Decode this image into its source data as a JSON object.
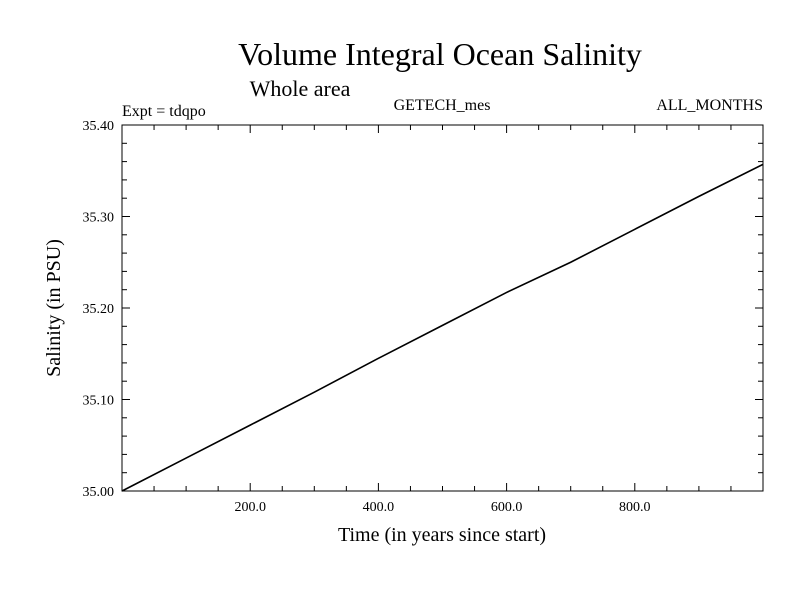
{
  "chart_data": {
    "type": "line",
    "title": "Volume Integral Ocean Salinity",
    "subtitle": "Whole area",
    "annotations": {
      "left": "Expt = tdqpo",
      "center": "GETECH_mes",
      "right": "ALL_MONTHS"
    },
    "xlabel": "Time (in years since start)",
    "ylabel": "Salinity (in PSU)",
    "xlim": [
      0,
      1000
    ],
    "ylim": [
      35.0,
      35.4
    ],
    "x_ticks": [
      {
        "value": 200,
        "label": "200.0"
      },
      {
        "value": 400,
        "label": "400.0"
      },
      {
        "value": 600,
        "label": "600.0"
      },
      {
        "value": 800,
        "label": "800.0"
      }
    ],
    "y_ticks": [
      {
        "value": 35.0,
        "label": "35.00"
      },
      {
        "value": 35.1,
        "label": "35.10"
      },
      {
        "value": 35.2,
        "label": "35.20"
      },
      {
        "value": 35.3,
        "label": "35.30"
      },
      {
        "value": 35.4,
        "label": "35.40"
      }
    ],
    "grid": false,
    "series": [
      {
        "color": "#000000",
        "x": [
          0,
          100,
          200,
          300,
          400,
          500,
          600,
          700,
          800,
          900,
          1000
        ],
        "y": [
          35.0,
          35.036,
          35.072,
          35.108,
          35.145,
          35.181,
          35.217,
          35.25,
          35.286,
          35.322,
          35.357
        ]
      }
    ]
  }
}
